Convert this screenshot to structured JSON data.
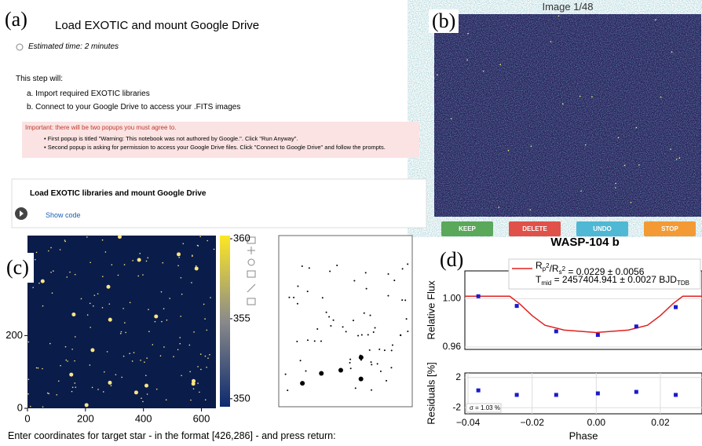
{
  "panel_labels": [
    "(a)",
    "(b)",
    "(c)",
    "(d)"
  ],
  "notebook": {
    "title": "Load EXOTIC and mount Google Drive",
    "estimate": "Estimated time: 2 minutes",
    "intro": "This step will:",
    "steps": [
      "a. Import required EXOTIC libraries",
      "b. Connect to your Google Drive to access your .FITS images"
    ],
    "warning": "Important: there will be two popups you must agree to.",
    "popups": [
      "First popup is titled \"Warning: This notebook was not authored by Google.\". Click \"Run Anyway\".",
      "Second popup is asking for permission to access your Google Drive files. Click \"Connect to Google Drive\" and follow the prompts."
    ]
  },
  "cell": {
    "title": "Load EXOTIC libraries and mount Google Drive",
    "action": "Show code"
  },
  "viewer": {
    "title": "Image 1/48",
    "buttons": [
      {
        "label": "KEEP",
        "color": "#5aa85a"
      },
      {
        "label": "DELETE",
        "color": "#e0514a"
      },
      {
        "label": "UNDO",
        "color": "#4fb8d4"
      },
      {
        "label": "STOP",
        "color": "#f39a35"
      }
    ]
  },
  "prompt": "Enter coordinates for target star - in the format [426,286] - and press return:",
  "chart_data": [
    {
      "type": "image",
      "xlim": [
        0,
        650
      ],
      "ylim": [
        0,
        475
      ],
      "xticks": [
        0,
        200,
        400,
        600
      ],
      "yticks": [
        0,
        200
      ],
      "clim": [
        349.5,
        360.2
      ],
      "cticks": [
        360,
        355,
        350
      ]
    },
    {
      "type": "line",
      "title": "WASP-104 b",
      "ylabel": "Relative Flux",
      "xlim": [
        -0.041,
        0.033
      ],
      "ylim": [
        0.958,
        1.023
      ],
      "yticks": [
        {
          "value": 1,
          "label": "1.00"
        },
        {
          "value": 0.96,
          "label": "0.96"
        }
      ],
      "grid": true,
      "legend": [
        [
          "R",
          "p",
          "2",
          "/R",
          "s",
          "2",
          " = 0.0229 ± 0.0056"
        ],
        [
          "T",
          "mid",
          " = 2457404.941 ± 0.0027 BJD",
          "TDB"
        ]
      ],
      "series": [
        {
          "type": "line",
          "color": "#e02020",
          "x": [
            -0.041,
            -0.027,
            -0.024,
            -0.02,
            -0.016,
            -0.01,
            0,
            0.01,
            0.016,
            0.02,
            0.024,
            0.027,
            0.033
          ],
          "values": [
            1.002,
            1.002,
            0.996,
            0.986,
            0.978,
            0.974,
            0.972,
            0.974,
            0.978,
            0.986,
            0.996,
            1.002,
            1.002
          ]
        },
        {
          "type": "markers",
          "color": "#1a1acc",
          "x": [
            -0.0368,
            -0.0248,
            -0.0125,
            0.0005,
            0.0125,
            0.0248
          ],
          "values": [
            1.002,
            0.994,
            0.973,
            0.97,
            0.977,
            0.993
          ]
        }
      ]
    },
    {
      "type": "scatter",
      "ylabel": "Residuals [%]",
      "xlabel": "Phase",
      "xlim": [
        -0.041,
        0.033
      ],
      "ylim": [
        -2.8,
        2.6
      ],
      "yticks": [
        2,
        -2
      ],
      "xticks": [
        {
          "value": -0.04,
          "label": "−0.04"
        },
        {
          "value": -0.02,
          "label": "−0.02"
        },
        {
          "value": 0,
          "label": "0.00"
        },
        {
          "value": 0.02,
          "label": "0.02"
        }
      ],
      "grid": true,
      "annotation": "σ = 1.03 %",
      "series": [
        {
          "color": "#1a1acc",
          "x": [
            -0.0368,
            -0.0248,
            -0.0125,
            0.0005,
            0.0125,
            0.0248
          ],
          "values": [
            0.3,
            -0.3,
            -0.3,
            -0.1,
            0.1,
            -0.3
          ]
        }
      ]
    }
  ]
}
